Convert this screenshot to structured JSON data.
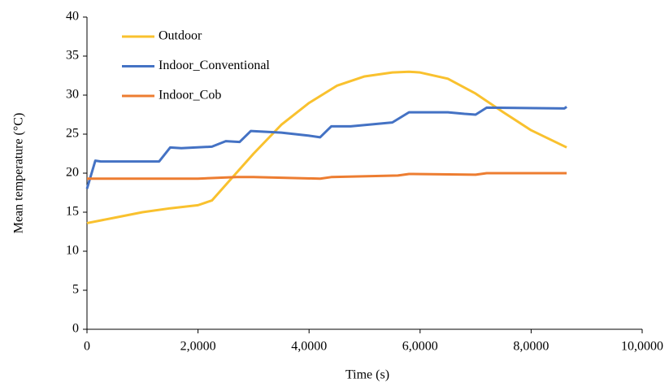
{
  "chart_data": {
    "type": "line",
    "xlabel": "Time (s)",
    "ylabel": "Mean temperature (°C)",
    "xlim": [
      0,
      100000
    ],
    "xticks": [
      0,
      {
        "value": 20000,
        "label": "2,0000"
      },
      {
        "value": 40000,
        "label": "4,0000"
      },
      {
        "value": 60000,
        "label": "6,0000"
      },
      {
        "value": 80000,
        "label": "8,0000"
      },
      {
        "value": 100000,
        "label": "10,0000"
      }
    ],
    "ylim": [
      0,
      40
    ],
    "yticks": [
      0,
      5,
      10,
      15,
      20,
      25,
      30,
      35,
      40
    ],
    "grid": false,
    "legend": "top-left",
    "series": [
      {
        "name": "Outdoor",
        "color": "#f9c12e",
        "x": [
          0,
          5000,
          10000,
          15000,
          20000,
          22500,
          25000,
          30000,
          35000,
          40000,
          45000,
          50000,
          55000,
          58000,
          60000,
          65000,
          70000,
          75000,
          80000,
          86400
        ],
        "values": [
          13.6,
          14.3,
          15.0,
          15.5,
          15.9,
          16.5,
          18.5,
          22.5,
          26.2,
          29.0,
          31.2,
          32.4,
          32.9,
          33.0,
          32.9,
          32.1,
          30.2,
          27.8,
          25.5,
          23.3
        ]
      },
      {
        "name": "Indoor_Conventional",
        "color": "#4472c4",
        "x": [
          0,
          1500,
          2500,
          13000,
          15000,
          17000,
          22500,
          25000,
          27500,
          29500,
          35000,
          40000,
          42000,
          44000,
          47500,
          55000,
          58000,
          65000,
          68000,
          70000,
          72000,
          86000,
          86400
        ],
        "values": [
          18.0,
          21.6,
          21.5,
          21.5,
          23.3,
          23.2,
          23.4,
          24.1,
          24.0,
          25.4,
          25.2,
          24.8,
          24.6,
          26.0,
          26.0,
          26.5,
          27.8,
          27.8,
          27.6,
          27.5,
          28.4,
          28.3,
          28.5
        ]
      },
      {
        "name": "Indoor_Cob",
        "color": "#ed7d31",
        "x": [
          0,
          20000,
          27000,
          30000,
          42000,
          44000,
          56000,
          58000,
          70000,
          72000,
          86400
        ],
        "values": [
          19.3,
          19.3,
          19.5,
          19.5,
          19.3,
          19.5,
          19.7,
          19.9,
          19.8,
          20.0,
          20.0
        ]
      }
    ]
  }
}
